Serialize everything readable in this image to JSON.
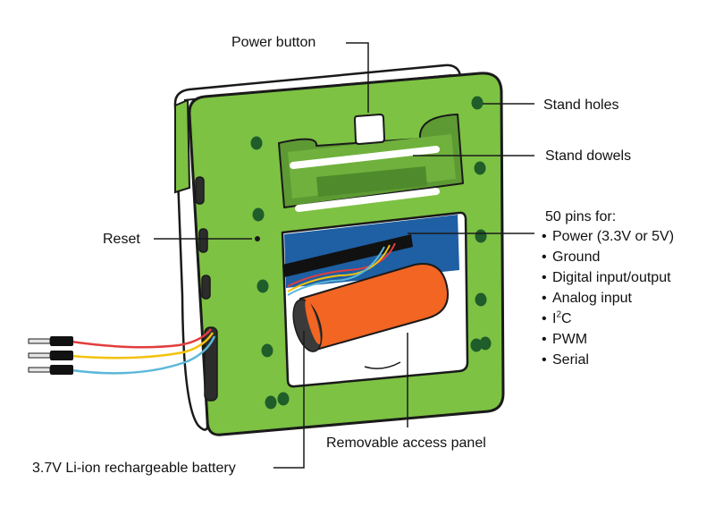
{
  "labels": {
    "power_button": "Power button",
    "stand_holes": "Stand holes",
    "stand_dowels": "Stand dowels",
    "reset": "Reset",
    "pins_title": "50 pins for:",
    "removable_panel": "Removable access panel",
    "battery": "3.7V Li-ion rechargeable battery"
  },
  "pins_list": {
    "power": "Power (3.3V or 5V)",
    "ground": "Ground",
    "digital": "Digital input/output",
    "analog": "Analog input",
    "i2c_prefix": "I",
    "i2c_sup": "2",
    "i2c_suffix": "C",
    "pwm": "PWM",
    "serial": "Serial"
  },
  "bullet": "•",
  "colors": {
    "case_green": "#7dc243",
    "hole_green": "#1f5d2a",
    "battery_orange": "#f26522",
    "pcb_blue": "#1f5fa3",
    "wire_red": "#e23d3d",
    "wire_yellow": "#f4c20d",
    "wire_blue": "#5bb8d8",
    "outline": "#1a1a1a"
  }
}
